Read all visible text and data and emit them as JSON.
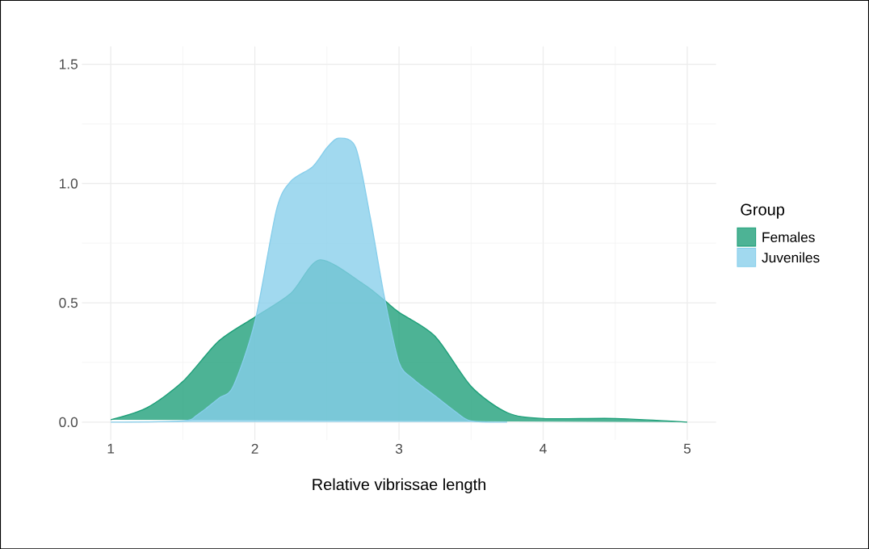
{
  "chart_data": {
    "type": "area",
    "xlabel": "Relative vibrissae length",
    "legend_title": "Group",
    "xlim": [
      0.8,
      5.2
    ],
    "ylim": [
      -0.075,
      1.575
    ],
    "xticks": [
      1,
      2,
      3,
      4,
      5
    ],
    "yticks": [
      {
        "value": 0,
        "label": "0.0"
      },
      {
        "value": 0.5,
        "label": "0.5"
      },
      {
        "value": 1,
        "label": "1.0"
      },
      {
        "value": 1.5,
        "label": "1.5"
      }
    ],
    "grid": true,
    "legend": "right",
    "series": [
      {
        "name": "Females",
        "color": "#1b9e77",
        "x": [
          1,
          1.25,
          1.5,
          1.75,
          2,
          2.25,
          2.45,
          2.75,
          2.9,
          3,
          3.25,
          3.5,
          3.75,
          4,
          4.5,
          5
        ],
        "values": [
          0.01,
          0.06,
          0.17,
          0.34,
          0.44,
          0.54,
          0.68,
          0.58,
          0.51,
          0.46,
          0.36,
          0.15,
          0.04,
          0.015,
          0.015,
          0
        ]
      },
      {
        "name": "Juveniles",
        "color": "#87ceeb",
        "x": [
          1,
          1.5,
          1.6,
          1.75,
          1.85,
          2,
          2.15,
          2.25,
          2.4,
          2.5,
          2.58,
          2.7,
          2.8,
          2.9,
          3,
          3.1,
          3.25,
          3.4,
          3.5,
          3.75
        ],
        "values": [
          0,
          0.005,
          0.03,
          0.1,
          0.15,
          0.42,
          0.89,
          1.01,
          1.07,
          1.15,
          1.19,
          1.15,
          0.86,
          0.52,
          0.25,
          0.18,
          0.11,
          0.04,
          0.005,
          0
        ]
      }
    ]
  }
}
